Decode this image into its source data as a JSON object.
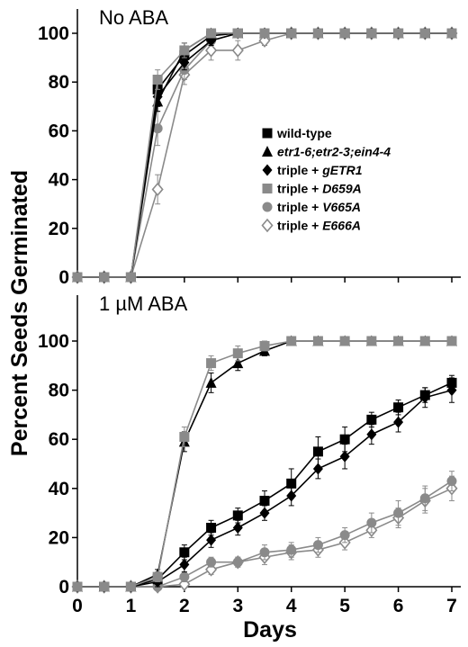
{
  "figure": {
    "ylabel": "Percent Seeds Germinated",
    "xlabel": "Days"
  },
  "colors": {
    "black": "#000000",
    "gray": "#8a8a8a"
  },
  "legend": {
    "placement": "inside top panel, right of center",
    "entries": [
      {
        "series": "wt",
        "parts": [
          {
            "text": "wild-type",
            "italic": false
          }
        ]
      },
      {
        "series": "triple",
        "parts": [
          {
            "text": "etr1-6;etr2-3;ein4-4",
            "italic": true
          }
        ]
      },
      {
        "series": "gETR1",
        "parts": [
          {
            "text": "triple + ",
            "italic": false
          },
          {
            "text": "gETR1",
            "italic": true
          }
        ]
      },
      {
        "series": "D659A",
        "parts": [
          {
            "text": "triple + ",
            "italic": false
          },
          {
            "text": "D659A",
            "italic": true
          }
        ]
      },
      {
        "series": "V665A",
        "parts": [
          {
            "text": "triple + ",
            "italic": false
          },
          {
            "text": "V665A",
            "italic": true
          }
        ]
      },
      {
        "series": "E666A",
        "parts": [
          {
            "text": "triple + ",
            "italic": false
          },
          {
            "text": "E666A",
            "italic": true
          }
        ]
      }
    ]
  },
  "chart_data": [
    {
      "type": "line",
      "title": "No ABA",
      "xlabel": "Days",
      "ylabel": "Percent Seeds Germinated",
      "xlim": [
        0,
        7
      ],
      "ylim": [
        0,
        100
      ],
      "xticks": [
        "0",
        "1",
        "2",
        "3",
        "4",
        "5",
        "6",
        "7"
      ],
      "yticks": [
        "0",
        "20",
        "40",
        "60",
        "80",
        "100"
      ],
      "grid": false,
      "x": [
        0,
        0.5,
        1,
        1.5,
        2,
        2.5,
        3,
        3.5,
        4,
        4.5,
        5,
        5.5,
        6,
        6.5,
        7
      ],
      "series": [
        {
          "name": "wild-type",
          "key": "wt",
          "color": "#000000",
          "marker": "square-filled",
          "values": [
            0,
            0,
            0,
            77,
            91,
            99,
            100,
            100,
            100,
            100,
            100,
            100,
            100,
            100,
            100
          ],
          "errors": [
            0,
            0,
            0,
            4,
            3,
            1,
            0,
            0,
            0,
            0,
            0,
            0,
            0,
            0,
            0
          ]
        },
        {
          "name": "etr1-6;etr2-3;ein4-4",
          "key": "triple",
          "color": "#000000",
          "marker": "triangle-filled",
          "values": [
            0,
            0,
            0,
            72,
            93,
            100,
            100,
            100,
            100,
            100,
            100,
            100,
            100,
            100,
            100
          ],
          "errors": [
            0,
            0,
            0,
            4,
            3,
            0,
            0,
            0,
            0,
            0,
            0,
            0,
            0,
            0,
            0
          ]
        },
        {
          "name": "triple + gETR1",
          "key": "gETR1",
          "color": "#000000",
          "marker": "diamond-filled",
          "values": [
            0,
            0,
            0,
            74,
            88,
            97,
            100,
            100,
            100,
            100,
            100,
            100,
            100,
            100,
            100
          ],
          "errors": [
            0,
            0,
            0,
            4,
            3,
            2,
            0,
            0,
            0,
            0,
            0,
            0,
            0,
            0,
            0
          ]
        },
        {
          "name": "triple + D659A",
          "key": "D659A",
          "color": "#8a8a8a",
          "marker": "square-filled",
          "values": [
            0,
            0,
            0,
            81,
            93,
            100,
            100,
            100,
            100,
            100,
            100,
            100,
            100,
            100,
            100
          ],
          "errors": [
            0,
            0,
            0,
            4,
            3,
            0,
            0,
            0,
            0,
            0,
            0,
            0,
            0,
            0,
            0
          ]
        },
        {
          "name": "triple + V665A",
          "key": "V665A",
          "color": "#8a8a8a",
          "marker": "circle-filled",
          "values": [
            0,
            0,
            0,
            61,
            85,
            97,
            100,
            100,
            100,
            100,
            100,
            100,
            100,
            100,
            100
          ],
          "errors": [
            0,
            0,
            0,
            7,
            4,
            2,
            0,
            0,
            0,
            0,
            0,
            0,
            0,
            0,
            0
          ]
        },
        {
          "name": "triple + E666A",
          "key": "E666A",
          "color": "#8a8a8a",
          "marker": "diamond-open",
          "values": [
            0,
            0,
            0,
            36,
            83,
            93,
            93,
            97,
            100,
            100,
            100,
            100,
            100,
            100,
            100
          ],
          "errors": [
            0,
            0,
            0,
            6,
            4,
            4,
            4,
            2,
            0,
            0,
            0,
            0,
            0,
            0,
            0
          ]
        }
      ]
    },
    {
      "type": "line",
      "title": "1 µM ABA",
      "xlabel": "Days",
      "ylabel": "Percent Seeds Germinated",
      "xlim": [
        0,
        7
      ],
      "ylim": [
        0,
        100
      ],
      "xticks": [
        "0",
        "1",
        "2",
        "3",
        "4",
        "5",
        "6",
        "7"
      ],
      "yticks": [
        "0",
        "20",
        "40",
        "60",
        "80",
        "100"
      ],
      "grid": false,
      "x": [
        0,
        0.5,
        1,
        1.5,
        2,
        2.5,
        3,
        3.5,
        4,
        4.5,
        5,
        5.5,
        6,
        6.5,
        7
      ],
      "series": [
        {
          "name": "wild-type",
          "key": "wt",
          "color": "#000000",
          "marker": "square-filled",
          "values": [
            0,
            0,
            0,
            3,
            14,
            24,
            29,
            35,
            42,
            55,
            60,
            68,
            73,
            78,
            83
          ],
          "errors": [
            0,
            0,
            0,
            2,
            3,
            3,
            3,
            4,
            6,
            6,
            5,
            3,
            3,
            3,
            3
          ]
        },
        {
          "name": "etr1-6;etr2-3;ein4-4",
          "key": "triple",
          "color": "#000000",
          "marker": "triangle-filled",
          "values": [
            0,
            0,
            0,
            5,
            59,
            83,
            91,
            96,
            100,
            100,
            100,
            100,
            100,
            100,
            100
          ],
          "errors": [
            0,
            0,
            0,
            2,
            4,
            4,
            3,
            2,
            0,
            0,
            0,
            0,
            0,
            0,
            0
          ]
        },
        {
          "name": "triple + gETR1",
          "key": "gETR1",
          "color": "#000000",
          "marker": "diamond-filled",
          "values": [
            0,
            0,
            0,
            2,
            9,
            19,
            24,
            30,
            37,
            48,
            53,
            62,
            67,
            77,
            80
          ],
          "errors": [
            0,
            0,
            0,
            2,
            3,
            3,
            3,
            3,
            4,
            4,
            5,
            4,
            4,
            4,
            5
          ]
        },
        {
          "name": "triple + D659A",
          "key": "D659A",
          "color": "#8a8a8a",
          "marker": "square-filled",
          "values": [
            0,
            0,
            0,
            4,
            61,
            91,
            95,
            98,
            100,
            100,
            100,
            100,
            100,
            100,
            100
          ],
          "errors": [
            0,
            0,
            0,
            2,
            4,
            3,
            3,
            2,
            0,
            0,
            0,
            0,
            0,
            0,
            0
          ]
        },
        {
          "name": "triple + V665A",
          "key": "V665A",
          "color": "#8a8a8a",
          "marker": "circle-filled",
          "values": [
            0,
            0,
            0,
            0,
            4,
            10,
            10,
            14,
            15,
            17,
            21,
            26,
            30,
            36,
            43
          ],
          "errors": [
            0,
            0,
            0,
            0,
            2,
            2,
            2,
            3,
            3,
            3,
            3,
            4,
            5,
            5,
            4
          ]
        },
        {
          "name": "triple + E666A",
          "key": "E666A",
          "color": "#8a8a8a",
          "marker": "diamond-open",
          "values": [
            0,
            0,
            0,
            0,
            1,
            7,
            10,
            12,
            14,
            15,
            18,
            23,
            28,
            35,
            40
          ],
          "errors": [
            0,
            0,
            0,
            0,
            1,
            2,
            2,
            3,
            3,
            3,
            3,
            3,
            4,
            5,
            5
          ]
        }
      ]
    }
  ]
}
